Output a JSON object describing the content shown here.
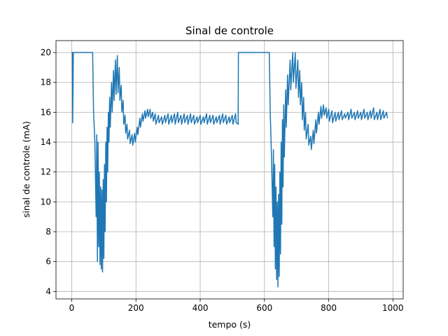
{
  "chart_data": {
    "type": "line",
    "title": "Sinal de controle",
    "xlabel": "tempo (s)",
    "ylabel": "sinal de controle (mA)",
    "color": "#1f77b4",
    "grid": true,
    "xlim": [
      -49,
      1032
    ],
    "ylim": [
      3.5,
      20.8
    ],
    "xticks": [
      0,
      200,
      400,
      600,
      800,
      1000
    ],
    "yticks": [
      4,
      6,
      8,
      10,
      12,
      14,
      16,
      18,
      20
    ],
    "x": [
      0,
      2,
      3,
      5,
      65,
      68,
      72,
      76,
      78,
      80,
      82,
      84,
      86,
      88,
      90,
      92,
      94,
      96,
      98,
      100,
      102,
      104,
      106,
      108,
      110,
      112,
      114,
      116,
      118,
      120,
      124,
      126,
      130,
      132,
      136,
      138,
      142,
      144,
      148,
      150,
      154,
      156,
      160,
      162,
      166,
      168,
      172,
      174,
      180,
      182,
      188,
      190,
      196,
      198,
      204,
      206,
      212,
      214,
      220,
      222,
      228,
      230,
      236,
      238,
      244,
      246,
      252,
      254,
      260,
      262,
      270,
      272,
      280,
      282,
      290,
      292,
      300,
      302,
      310,
      312,
      320,
      322,
      330,
      332,
      340,
      342,
      350,
      352,
      360,
      362,
      370,
      372,
      380,
      382,
      390,
      392,
      400,
      402,
      410,
      412,
      420,
      422,
      430,
      432,
      440,
      442,
      450,
      452,
      460,
      462,
      470,
      472,
      480,
      482,
      490,
      492,
      500,
      502,
      510,
      512,
      518,
      519,
      615,
      618,
      622,
      626,
      628,
      630,
      632,
      634,
      636,
      638,
      640,
      642,
      644,
      646,
      648,
      650,
      652,
      654,
      656,
      658,
      660,
      662,
      666,
      668,
      672,
      674,
      680,
      682,
      688,
      690,
      696,
      698,
      704,
      706,
      710,
      712,
      716,
      718,
      722,
      724,
      728,
      730,
      736,
      738,
      744,
      746,
      752,
      754,
      760,
      762,
      768,
      770,
      776,
      778,
      784,
      786,
      792,
      794,
      800,
      802,
      810,
      812,
      820,
      822,
      830,
      832,
      840,
      842,
      850,
      852,
      860,
      862,
      870,
      872,
      880,
      882,
      890,
      892,
      900,
      902,
      910,
      912,
      920,
      922,
      930,
      932,
      940,
      942,
      950,
      952,
      960,
      962,
      970,
      972,
      980,
      983
    ],
    "values": [
      20,
      20,
      15.3,
      20,
      20,
      16,
      14,
      9,
      14.5,
      6,
      14,
      7,
      12,
      5.8,
      11,
      5.5,
      10.8,
      5.3,
      11.5,
      6.2,
      12.5,
      8,
      14,
      10,
      15,
      12,
      16,
      14,
      17,
      15,
      18,
      16,
      18.8,
      16.8,
      19.5,
      17.2,
      19.8,
      17.3,
      19,
      16.8,
      17.8,
      16,
      16.8,
      15.2,
      15.8,
      14.6,
      15.2,
      14.2,
      14.8,
      13.9,
      14.5,
      13.8,
      14.6,
      14,
      15,
      14.5,
      15.6,
      15,
      15.9,
      15.4,
      16.1,
      15.6,
      16.2,
      15.7,
      16.2,
      15.6,
      16,
      15.4,
      15.9,
      15.2,
      15.8,
      15.3,
      15.7,
      15.2,
      15.8,
      15.3,
      15.9,
      15.2,
      15.8,
      15.3,
      15.9,
      15.2,
      16,
      15.3,
      15.8,
      15.2,
      15.9,
      15.3,
      15.8,
      15.2,
      15.9,
      15.3,
      15.8,
      15.2,
      15.7,
      15.3,
      15.8,
      15.2,
      15.7,
      15.3,
      15.9,
      15.2,
      15.8,
      15.3,
      15.8,
      15.2,
      15.7,
      15.3,
      15.8,
      15.2,
      15.9,
      15.3,
      15.8,
      15.2,
      15.7,
      15.3,
      15.8,
      15.2,
      15.9,
      15.3,
      15.2,
      20,
      20,
      16,
      13,
      9,
      13.5,
      7,
      12.5,
      5.5,
      11,
      4.8,
      10,
      4.3,
      10.5,
      5,
      12,
      6.5,
      14,
      8.5,
      15.5,
      11,
      16.5,
      13,
      17.5,
      15,
      18.5,
      16.5,
      19.5,
      17.5,
      20,
      18,
      20,
      17.6,
      19.5,
      17,
      18.8,
      16.5,
      18,
      15.5,
      17,
      14.8,
      16,
      14.2,
      15.2,
      13.8,
      14.4,
      13.5,
      14.8,
      13.9,
      15.5,
      14.6,
      16,
      15.2,
      16.4,
      15.6,
      16.5,
      15.8,
      16.3,
      15.6,
      16.2,
      15.4,
      16.1,
      15.3,
      16,
      15.4,
      16,
      15.5,
      16.1,
      15.5,
      15.9,
      15.6,
      16,
      15.5,
      16.2,
      15.6,
      16,
      15.5,
      16.1,
      15.6,
      16,
      15.5,
      16.2,
      15.6,
      16,
      15.5,
      16.1,
      15.6,
      16.3,
      15.5,
      16,
      15.5,
      16.2,
      15.5,
      16.1,
      15.6,
      16,
      15.6
    ]
  }
}
